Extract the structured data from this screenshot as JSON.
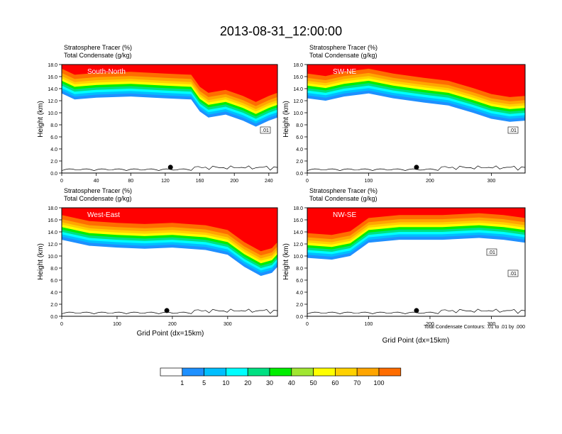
{
  "title": "2013-08-31_12:00:00",
  "panel_headers": {
    "line1": "Stratosphere Tracer   (%)",
    "line2": "Total Condensate   (g/kg)"
  },
  "ylabel": "Height (km)",
  "xlabel": "Grid Point (dx=15km)",
  "contour_note": "Total Condensate Contours: .01 to .01 by .000",
  "chart_data": [
    {
      "type": "contour",
      "name": "South-North",
      "xticks": [
        0,
        40,
        80,
        120,
        160,
        200,
        240
      ],
      "xlim": [
        0,
        250
      ],
      "yticks": [
        "0.0",
        "2.0",
        "4.0",
        "6.0",
        "8.0",
        "10.0",
        "12.0",
        "14.0",
        "16.0",
        "18.0"
      ],
      "ylim": [
        0,
        18
      ],
      "tropopause": [
        [
          0,
          15
        ],
        [
          15,
          14
        ],
        [
          40,
          14.3
        ],
        [
          80,
          14.5
        ],
        [
          120,
          14.2
        ],
        [
          150,
          14
        ],
        [
          160,
          12
        ],
        [
          170,
          11
        ],
        [
          190,
          11.5
        ],
        [
          210,
          10.5
        ],
        [
          225,
          9.5
        ],
        [
          240,
          10.5
        ],
        [
          250,
          11
        ]
      ],
      "marker_x": 126,
      "contour_labels": [
        ".01"
      ]
    },
    {
      "type": "contour",
      "name": "SW-NE",
      "xticks": [
        0,
        100,
        200,
        300
      ],
      "xlim": [
        0,
        355
      ],
      "yticks": [
        "0.0",
        "2.0",
        "4.0",
        "6.0",
        "8.0",
        "10.0",
        "12.0",
        "14.0",
        "16.0",
        "18.0"
      ],
      "ylim": [
        0,
        18
      ],
      "tropopause": [
        [
          0,
          14.2
        ],
        [
          30,
          13.8
        ],
        [
          60,
          14.5
        ],
        [
          100,
          15
        ],
        [
          140,
          14.2
        ],
        [
          190,
          13.5
        ],
        [
          230,
          13
        ],
        [
          270,
          11.8
        ],
        [
          300,
          10.8
        ],
        [
          330,
          10.3
        ],
        [
          355,
          10.5
        ]
      ],
      "marker_x": 178,
      "contour_labels": [
        ".01"
      ]
    },
    {
      "type": "contour",
      "name": "West-East",
      "xticks": [
        0,
        100,
        200,
        300
      ],
      "xlim": [
        0,
        390
      ],
      "yticks": [
        "0.0",
        "2.0",
        "4.0",
        "6.0",
        "8.0",
        "10.0",
        "12.0",
        "14.0",
        "16.0",
        "18.0"
      ],
      "ylim": [
        0,
        18
      ],
      "tropopause": [
        [
          0,
          14.5
        ],
        [
          50,
          13.5
        ],
        [
          100,
          13.2
        ],
        [
          150,
          13
        ],
        [
          200,
          13.2
        ],
        [
          260,
          12.8
        ],
        [
          300,
          12
        ],
        [
          330,
          10
        ],
        [
          360,
          8.5
        ],
        [
          380,
          9
        ],
        [
          390,
          10
        ]
      ],
      "marker_x": 190,
      "contour_labels": []
    },
    {
      "type": "contour",
      "name": "NW-SE",
      "xticks": [
        0,
        100,
        200,
        300
      ],
      "xlim": [
        0,
        355
      ],
      "yticks": [
        "0.0",
        "2.0",
        "4.0",
        "6.0",
        "8.0",
        "10.0",
        "12.0",
        "14.0",
        "16.0",
        "18.0"
      ],
      "ylim": [
        0,
        18
      ],
      "tropopause": [
        [
          0,
          11.5
        ],
        [
          40,
          11.2
        ],
        [
          70,
          11.8
        ],
        [
          100,
          14
        ],
        [
          150,
          14.5
        ],
        [
          220,
          14.5
        ],
        [
          280,
          14.8
        ],
        [
          320,
          14.5
        ],
        [
          355,
          14
        ]
      ],
      "marker_x": 178,
      "contour_labels": [
        ".01",
        ".01"
      ]
    }
  ],
  "colorbar": {
    "labels": [
      "1",
      "5",
      "10",
      "20",
      "30",
      "40",
      "50",
      "60",
      "70",
      "100"
    ],
    "colors": [
      "#ffffff",
      "#1e90ff",
      "#00bfff",
      "#00ffff",
      "#00e082",
      "#00ee00",
      "#a0e632",
      "#ffff00",
      "#ffd100",
      "#ffa500",
      "#ff6d00",
      "#ff0000"
    ]
  }
}
